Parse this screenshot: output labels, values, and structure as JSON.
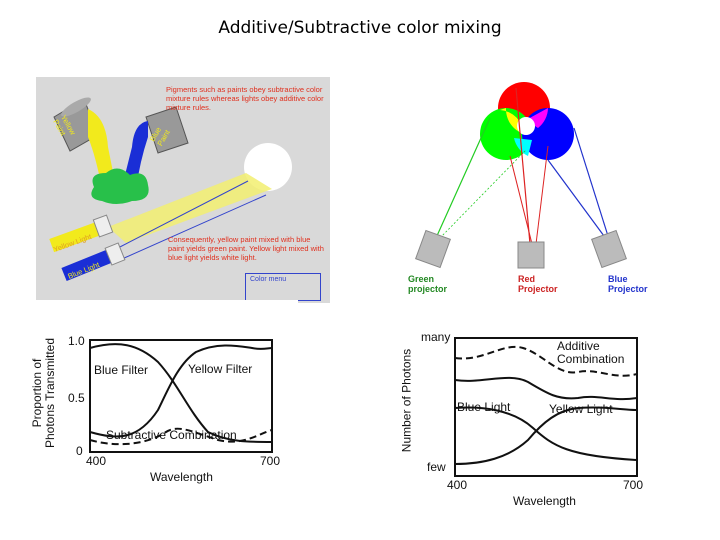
{
  "title": "Additive/Subtractive color mixing",
  "paint_panel": {
    "note_top": "Pigments such as paints obey subtractive color mixture rules whereas lights obey additive color mixture rules.",
    "note_bottom": "Consequently, yellow paint mixed with blue paint yields green paint. Yellow light mixed with blue light yields white light.",
    "yellow_can": "Yellow Paint",
    "blue_can": "Blue Paint",
    "yellow_light": "Yellow Light",
    "blue_light": "Blue Light",
    "menu": "Color menu"
  },
  "projector_panel": {
    "green": [
      "Green",
      "projector"
    ],
    "red": [
      "Red",
      "Projector"
    ],
    "blue": [
      "Blue",
      "Projector"
    ]
  },
  "subtractive_graph": {
    "y_title": [
      "Proportion of",
      "Photons Transmitted"
    ],
    "y_ticks": [
      "1.0",
      "0.5",
      "0"
    ],
    "x_ticks": [
      "400",
      "700"
    ],
    "x_title": "Wavelength",
    "labels": {
      "blue": "Blue Filter",
      "yellow": "Yellow Filter",
      "combo": "Subtractive Combination"
    }
  },
  "additive_graph": {
    "y_title": "Number of Photons",
    "y_top": "many",
    "y_bottom": "few",
    "x_ticks": [
      "400",
      "700"
    ],
    "x_title": "Wavelength",
    "labels": {
      "combo": [
        "Additive",
        "Combination"
      ],
      "blue": "Blue Light",
      "yellow": "Yellow Light"
    }
  }
}
